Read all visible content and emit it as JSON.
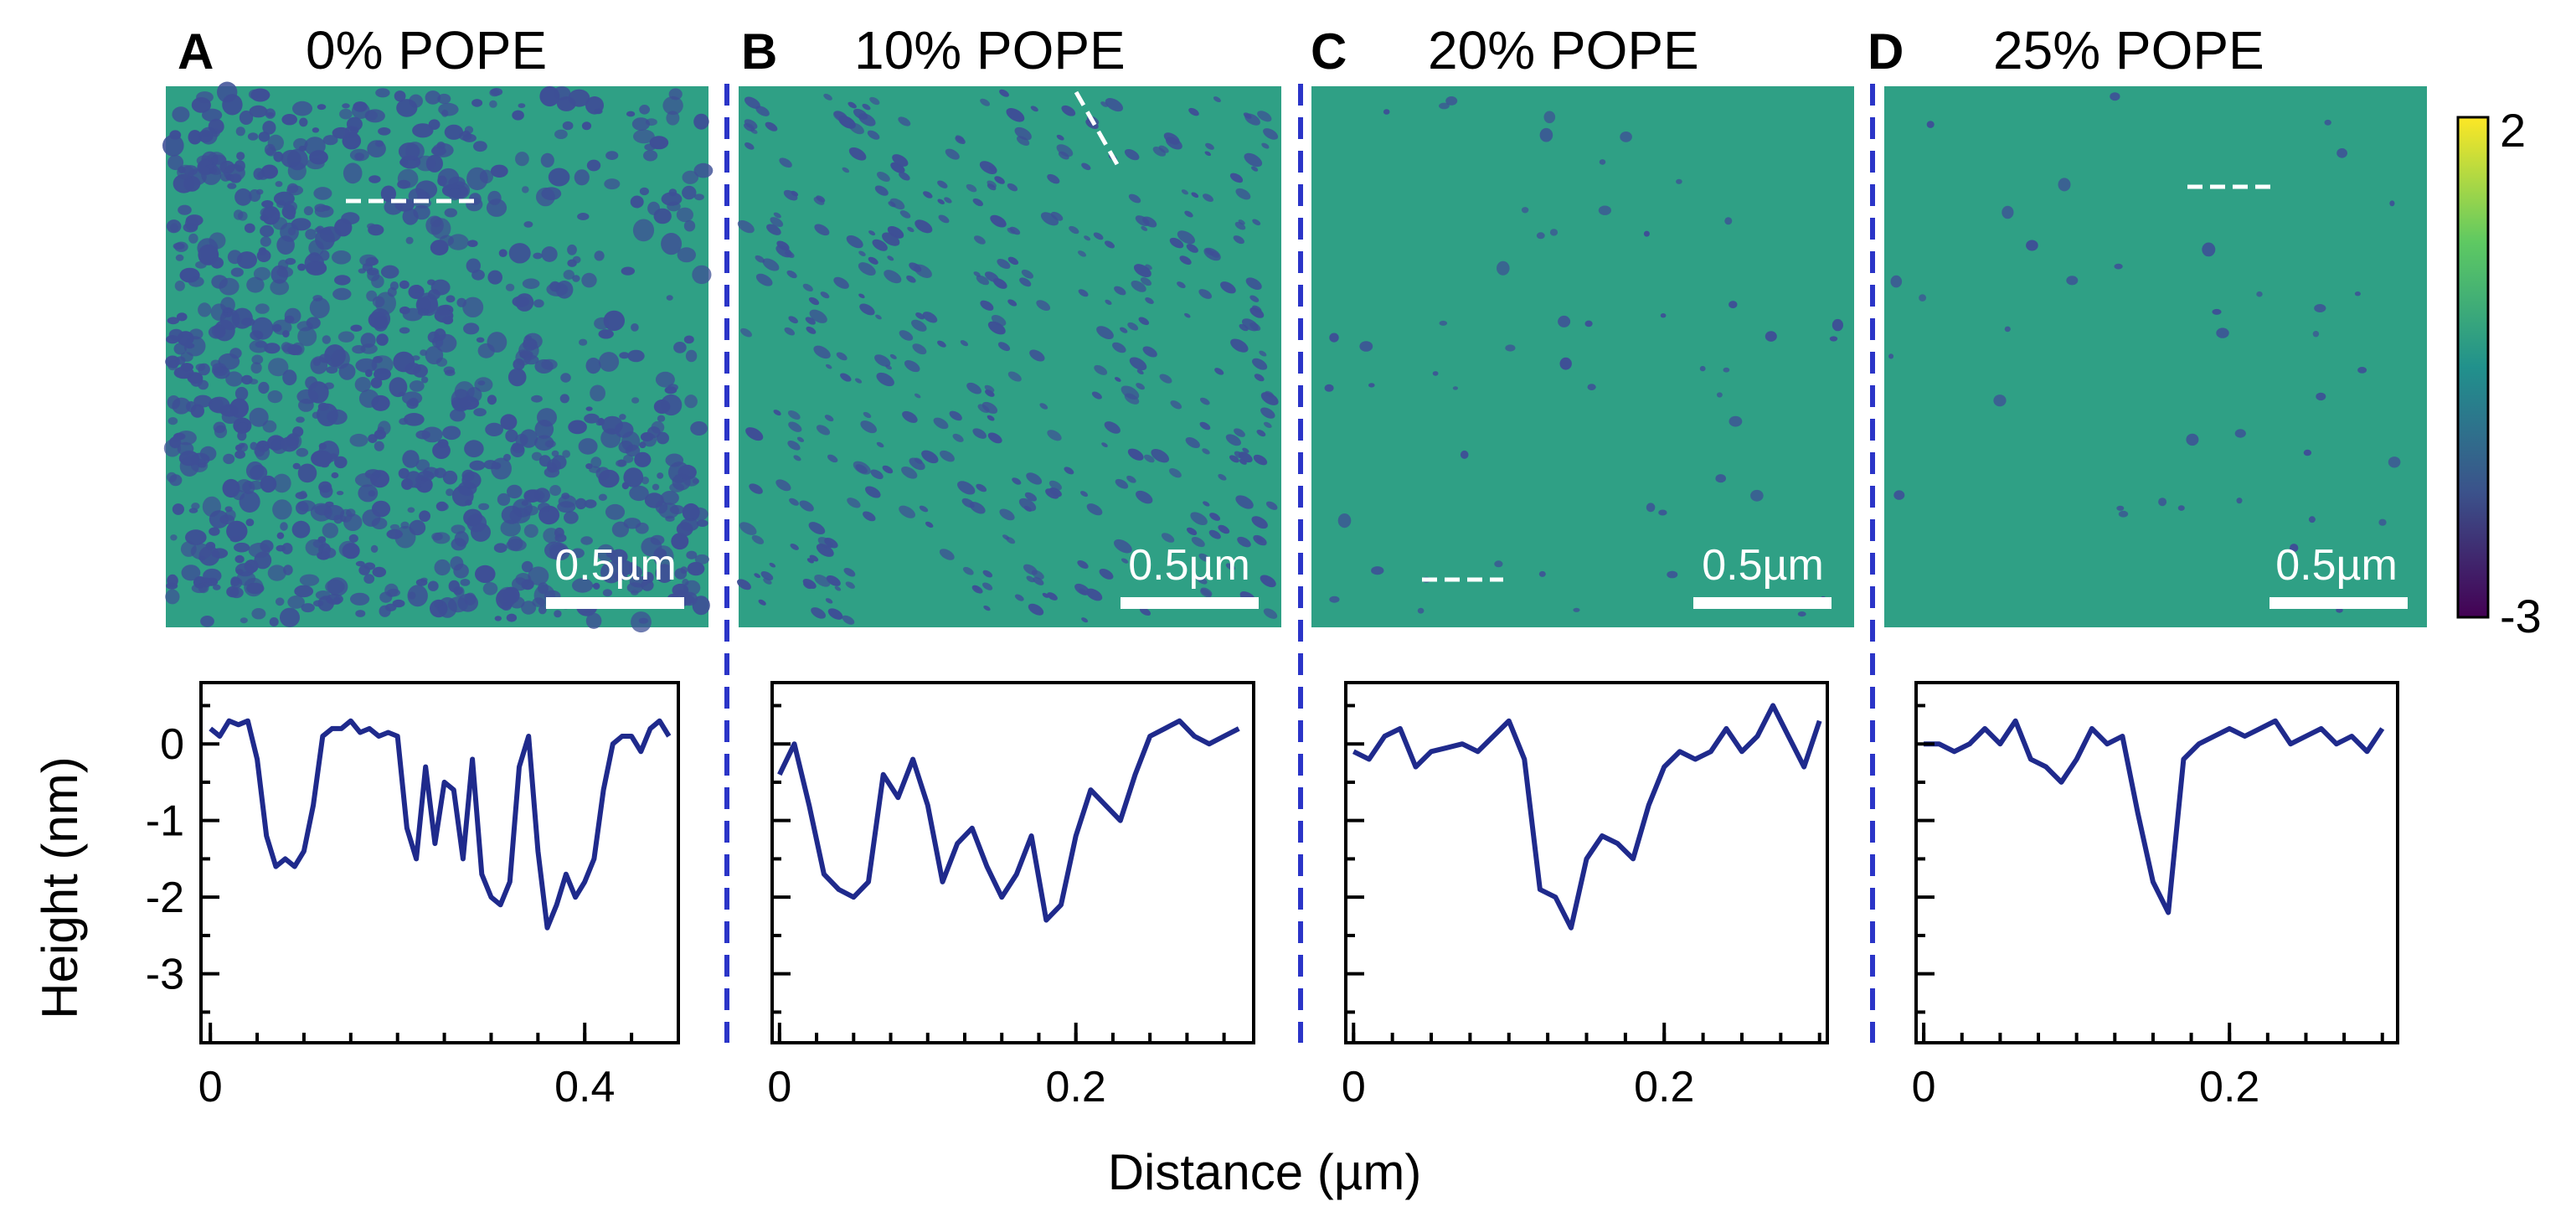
{
  "colors": {
    "surface": "#2fa085",
    "domain": "#3e4f96",
    "curve": "#1f2a8c",
    "divider": "#2b35c8",
    "marker": "#ffffff",
    "axis": "#000000"
  },
  "colorbar": {
    "max_label": "2",
    "min_label": "-3",
    "colormap": "viridis"
  },
  "shared_xlabel": "Distance (µm)",
  "shared_ylabel": "Height (nm)",
  "panels": [
    {
      "letter": "A",
      "title": "0% POPE",
      "scalebar_label": "0.5µm",
      "domain_density": 1.0
    },
    {
      "letter": "B",
      "title": "10% POPE",
      "scalebar_label": "0.5µm",
      "domain_density": 0.55
    },
    {
      "letter": "C",
      "title": "20% POPE",
      "scalebar_label": "0.5µm",
      "domain_density": 0.06
    },
    {
      "letter": "D",
      "title": "25% POPE",
      "scalebar_label": "0.5µm",
      "domain_density": 0.04
    }
  ],
  "chart_data": [
    {
      "type": "line",
      "panel": "A",
      "xlabel": "",
      "ylabel": "Height (nm)",
      "xlim": [
        -0.01,
        0.5
      ],
      "ylim": [
        -3.9,
        0.8
      ],
      "xticks": [
        0,
        0.4
      ],
      "xtick_labels": [
        "0",
        "0.4"
      ],
      "yticks": [
        0,
        -1,
        -2,
        -3
      ],
      "ytick_labels": [
        "0",
        "-1",
        "-2",
        "-3"
      ],
      "x": [
        0,
        0.01,
        0.02,
        0.03,
        0.04,
        0.05,
        0.06,
        0.07,
        0.08,
        0.09,
        0.1,
        0.11,
        0.12,
        0.13,
        0.14,
        0.15,
        0.16,
        0.17,
        0.18,
        0.19,
        0.2,
        0.21,
        0.22,
        0.23,
        0.24,
        0.25,
        0.26,
        0.27,
        0.28,
        0.29,
        0.3,
        0.31,
        0.32,
        0.33,
        0.34,
        0.35,
        0.36,
        0.37,
        0.38,
        0.39,
        0.4,
        0.41,
        0.42,
        0.43,
        0.44,
        0.45,
        0.46,
        0.47,
        0.48,
        0.49
      ],
      "y": [
        0.2,
        0.1,
        0.3,
        0.25,
        0.3,
        -0.2,
        -1.2,
        -1.6,
        -1.5,
        -1.6,
        -1.4,
        -0.8,
        0.1,
        0.2,
        0.2,
        0.3,
        0.15,
        0.2,
        0.1,
        0.15,
        0.1,
        -1.1,
        -1.5,
        -0.3,
        -1.3,
        -0.5,
        -0.6,
        -1.5,
        -0.2,
        -1.7,
        -2.0,
        -2.1,
        -1.8,
        -0.3,
        0.1,
        -1.4,
        -2.4,
        -2.1,
        -1.7,
        -2.0,
        -1.8,
        -1.5,
        -0.6,
        0.0,
        0.1,
        0.1,
        -0.1,
        0.2,
        0.3,
        0.1
      ]
    },
    {
      "type": "line",
      "panel": "B",
      "xlabel": "",
      "ylabel": "",
      "xlim": [
        -0.005,
        0.32
      ],
      "ylim": [
        -3.9,
        0.8
      ],
      "xticks": [
        0,
        0.2
      ],
      "xtick_labels": [
        "0",
        "0.2"
      ],
      "x": [
        0,
        0.01,
        0.02,
        0.03,
        0.04,
        0.05,
        0.06,
        0.07,
        0.08,
        0.09,
        0.1,
        0.11,
        0.12,
        0.13,
        0.14,
        0.15,
        0.16,
        0.17,
        0.18,
        0.19,
        0.2,
        0.21,
        0.22,
        0.23,
        0.24,
        0.25,
        0.26,
        0.27,
        0.28,
        0.29,
        0.3,
        0.31
      ],
      "y": [
        -0.4,
        0.0,
        -0.8,
        -1.7,
        -1.9,
        -2.0,
        -1.8,
        -0.4,
        -0.7,
        -0.2,
        -0.8,
        -1.8,
        -1.3,
        -1.1,
        -1.6,
        -2.0,
        -1.7,
        -1.2,
        -2.3,
        -2.1,
        -1.2,
        -0.6,
        -0.8,
        -1.0,
        -0.4,
        0.1,
        0.2,
        0.3,
        0.1,
        0.0,
        0.1,
        0.2
      ]
    },
    {
      "type": "line",
      "panel": "C",
      "xlabel": "",
      "ylabel": "",
      "xlim": [
        -0.005,
        0.305
      ],
      "ylim": [
        -3.9,
        0.8
      ],
      "xticks": [
        0,
        0.2
      ],
      "xtick_labels": [
        "0",
        "0.2"
      ],
      "x": [
        0,
        0.01,
        0.02,
        0.03,
        0.04,
        0.05,
        0.06,
        0.07,
        0.08,
        0.09,
        0.1,
        0.11,
        0.12,
        0.13,
        0.14,
        0.15,
        0.16,
        0.17,
        0.18,
        0.19,
        0.2,
        0.21,
        0.22,
        0.23,
        0.24,
        0.25,
        0.26,
        0.27,
        0.28,
        0.29,
        0.3
      ],
      "y": [
        -0.1,
        -0.2,
        0.1,
        0.2,
        -0.3,
        -0.1,
        -0.05,
        0.0,
        -0.1,
        0.1,
        0.3,
        -0.2,
        -1.9,
        -2.0,
        -2.4,
        -1.5,
        -1.2,
        -1.3,
        -1.5,
        -0.8,
        -0.3,
        -0.1,
        -0.2,
        -0.1,
        0.2,
        -0.1,
        0.1,
        0.5,
        0.1,
        -0.3,
        0.3
      ]
    },
    {
      "type": "line",
      "panel": "D",
      "xlabel": "",
      "ylabel": "",
      "xlim": [
        -0.005,
        0.31
      ],
      "ylim": [
        -3.9,
        0.8
      ],
      "xticks": [
        0,
        0.2
      ],
      "xtick_labels": [
        "0",
        "0.2"
      ],
      "x": [
        0,
        0.01,
        0.02,
        0.03,
        0.04,
        0.05,
        0.06,
        0.07,
        0.08,
        0.09,
        0.1,
        0.11,
        0.12,
        0.13,
        0.14,
        0.15,
        0.16,
        0.17,
        0.18,
        0.19,
        0.2,
        0.21,
        0.22,
        0.23,
        0.24,
        0.25,
        0.26,
        0.27,
        0.28,
        0.29,
        0.3
      ],
      "y": [
        0.0,
        0.0,
        -0.1,
        0.0,
        0.2,
        0.0,
        0.3,
        -0.2,
        -0.3,
        -0.5,
        -0.2,
        0.2,
        0.0,
        0.1,
        -0.9,
        -1.8,
        -2.2,
        -0.2,
        0.0,
        0.1,
        0.2,
        0.1,
        0.2,
        0.3,
        0.0,
        0.1,
        0.2,
        0.0,
        0.1,
        -0.1,
        0.2
      ]
    }
  ]
}
